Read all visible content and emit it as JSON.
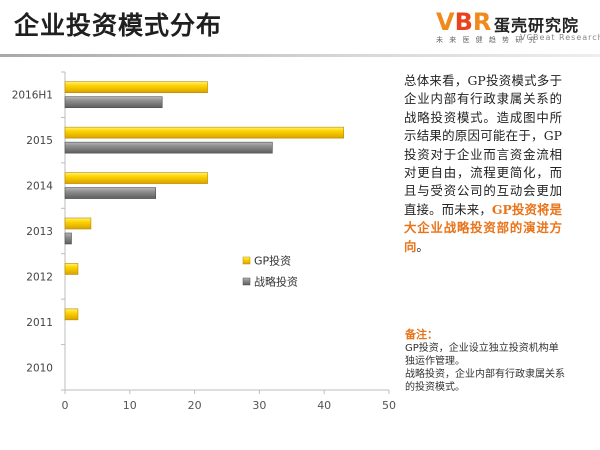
{
  "title": "企业投资模式分布",
  "logo": {
    "mark_v": "V",
    "mark_b": "B",
    "mark_r": "R",
    "name": "蛋壳研究院",
    "tagline": "未 来 医 健 趋 势 研 究",
    "english": "VCBeat  Research",
    "brand_colors": [
      "#f08a1c",
      "#e8431e"
    ]
  },
  "commentary": {
    "text_plain": "总体来看，GP投资模式多于企业内部有行政隶属关系的战略投资模式。造成图中所示结果的原因可能在于，GP投资对于企业而言资金流相对更自由，流程更简化，而且与受资公司的互动会更加直接。而未来，",
    "text_highlight": "GP投资将是大企业战略投资部的演进方向",
    "text_end": "。",
    "highlight_color": "#e9741a"
  },
  "note": {
    "title": "备注：",
    "line1": "GP投资，企业设立独立投资机构单独运作管理。",
    "line2": "战略投资，企业内部有行政隶属关系的投资模式。"
  },
  "chart_data": {
    "type": "bar",
    "orientation": "horizontal",
    "categories": [
      "2016H1",
      "2015",
      "2014",
      "2013",
      "2012",
      "2011",
      "2010"
    ],
    "series": [
      {
        "name": "GP投资",
        "values": [
          22,
          43,
          22,
          4,
          2,
          2,
          0
        ],
        "color": "#f5c400"
      },
      {
        "name": "战略投资",
        "values": [
          15,
          32,
          14,
          1,
          0,
          0,
          0
        ],
        "color": "#8c8c8c"
      }
    ],
    "xlim": [
      0,
      50
    ],
    "xticks": [
      "0",
      "10",
      "20",
      "30",
      "40",
      "50"
    ],
    "title": "",
    "xlabel": "",
    "ylabel": "",
    "grid": false,
    "legend": "center-right"
  }
}
